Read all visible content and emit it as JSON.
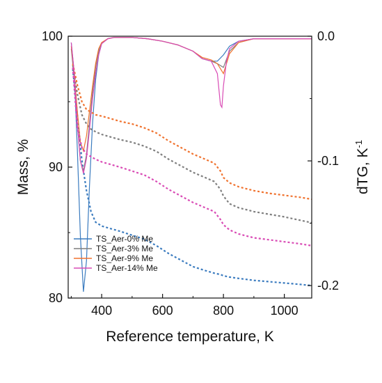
{
  "chart_data": {
    "type": "line",
    "xlabel": "Reference temperature, K",
    "ylabel_left": "Mass, %",
    "ylabel_right": "dTG, K",
    "ylabel_right_sup": "-1",
    "xlim": [
      290,
      1090
    ],
    "ylim_left": [
      80,
      100
    ],
    "ylim_right": [
      -0.21,
      0.0
    ],
    "x_ticks": [
      400,
      600,
      800,
      1000
    ],
    "y_left_ticks": [
      80,
      90,
      100
    ],
    "y_right_ticks": [
      0.0,
      -0.1,
      -0.2
    ],
    "y_right_tick_labels": [
      "0.0",
      "-0.1",
      "-0.2"
    ],
    "legend": {
      "placement": "bottom-left",
      "entries": [
        "TS_Aer-0% Me",
        "TS_Aer-3% Me",
        "TS_Aer-9% Me",
        "TS_Aer-14% Me"
      ]
    },
    "series": [
      {
        "name": "TS_Aer-0% Me",
        "color": "#3a7bbf",
        "mass": {
          "x": [
            305,
            320,
            335,
            350,
            365,
            380,
            400,
            430,
            460,
            500,
            540,
            580,
            620,
            660,
            700,
            740,
            770,
            790,
            800,
            820,
            850,
            900,
            950,
            1000,
            1050,
            1090
          ],
          "y": [
            97.5,
            94.0,
            90.5,
            88.2,
            86.6,
            85.8,
            85.5,
            85.3,
            85.1,
            84.8,
            84.5,
            84.0,
            83.4,
            82.9,
            82.4,
            82.1,
            81.9,
            81.8,
            81.7,
            81.6,
            81.5,
            81.35,
            81.25,
            81.15,
            81.05,
            80.95
          ]
        },
        "dtg": {
          "x": [
            300,
            310,
            320,
            330,
            340,
            350,
            360,
            370,
            380,
            390,
            400,
            420,
            440,
            470,
            500,
            550,
            600,
            650,
            700,
            730,
            760,
            780,
            800,
            820,
            850,
            900,
            950,
            1000,
            1050,
            1090
          ],
          "y": [
            -0.005,
            -0.03,
            -0.09,
            -0.16,
            -0.205,
            -0.18,
            -0.12,
            -0.07,
            -0.035,
            -0.015,
            -0.006,
            -0.002,
            -0.001,
            -0.001,
            -0.001,
            -0.002,
            -0.004,
            -0.007,
            -0.012,
            -0.018,
            -0.02,
            -0.02,
            -0.015,
            -0.008,
            -0.004,
            -0.002,
            -0.002,
            -0.002,
            -0.002,
            -0.002
          ]
        }
      },
      {
        "name": "TS_Aer-3% Me",
        "color": "#7f7f7f",
        "mass": {
          "x": [
            305,
            320,
            335,
            350,
            365,
            380,
            400,
            430,
            460,
            500,
            540,
            580,
            620,
            660,
            700,
            740,
            770,
            790,
            800,
            820,
            850,
            900,
            950,
            1000,
            1050,
            1090
          ],
          "y": [
            97.8,
            95.6,
            94.0,
            93.3,
            92.9,
            92.7,
            92.5,
            92.3,
            92.1,
            91.9,
            91.6,
            91.2,
            90.6,
            90.1,
            89.6,
            89.2,
            88.9,
            88.3,
            87.8,
            87.2,
            86.9,
            86.6,
            86.4,
            86.2,
            85.95,
            85.75
          ]
        },
        "dtg": {
          "x": [
            300,
            310,
            320,
            330,
            340,
            350,
            360,
            370,
            380,
            390,
            400,
            420,
            440,
            470,
            500,
            550,
            600,
            650,
            700,
            730,
            760,
            780,
            800,
            820,
            850,
            900,
            950,
            1000,
            1050,
            1090
          ],
          "y": [
            -0.01,
            -0.035,
            -0.07,
            -0.1,
            -0.108,
            -0.095,
            -0.07,
            -0.045,
            -0.025,
            -0.012,
            -0.006,
            -0.002,
            -0.001,
            -0.001,
            -0.001,
            -0.002,
            -0.004,
            -0.007,
            -0.012,
            -0.018,
            -0.02,
            -0.022,
            -0.025,
            -0.012,
            -0.005,
            -0.002,
            -0.002,
            -0.002,
            -0.002,
            -0.002
          ]
        }
      },
      {
        "name": "TS_Aer-9% Me",
        "color": "#f0722e",
        "mass": {
          "x": [
            305,
            320,
            335,
            350,
            365,
            380,
            400,
            430,
            460,
            500,
            540,
            580,
            620,
            660,
            700,
            740,
            770,
            790,
            800,
            820,
            850,
            900,
            950,
            1000,
            1050,
            1090
          ],
          "y": [
            97.9,
            96.3,
            95.0,
            94.4,
            94.2,
            94.0,
            93.9,
            93.7,
            93.5,
            93.3,
            93.0,
            92.6,
            92.0,
            91.5,
            91.0,
            90.6,
            90.3,
            89.7,
            89.2,
            88.8,
            88.5,
            88.2,
            88.0,
            87.85,
            87.7,
            87.55
          ]
        },
        "dtg": {
          "x": [
            300,
            310,
            320,
            330,
            340,
            350,
            360,
            370,
            380,
            390,
            400,
            420,
            440,
            470,
            500,
            550,
            600,
            650,
            700,
            730,
            760,
            780,
            800,
            820,
            850,
            900,
            950,
            1000,
            1050,
            1090
          ],
          "y": [
            -0.008,
            -0.03,
            -0.06,
            -0.085,
            -0.092,
            -0.08,
            -0.06,
            -0.04,
            -0.022,
            -0.01,
            -0.005,
            -0.002,
            -0.001,
            -0.001,
            -0.001,
            -0.002,
            -0.004,
            -0.007,
            -0.012,
            -0.017,
            -0.019,
            -0.022,
            -0.03,
            -0.014,
            -0.005,
            -0.002,
            -0.002,
            -0.002,
            -0.002,
            -0.002
          ]
        }
      },
      {
        "name": "TS_Aer-14% Me",
        "color": "#d94bb5",
        "mass": {
          "x": [
            305,
            320,
            335,
            350,
            365,
            380,
            400,
            430,
            460,
            500,
            540,
            580,
            620,
            660,
            700,
            740,
            770,
            790,
            800,
            820,
            850,
            900,
            950,
            1000,
            1050,
            1090
          ],
          "y": [
            97.6,
            93.0,
            91.5,
            91.0,
            90.8,
            90.6,
            90.4,
            90.2,
            90.0,
            89.7,
            89.4,
            88.9,
            88.3,
            87.8,
            87.3,
            86.9,
            86.6,
            86.0,
            85.6,
            85.2,
            84.9,
            84.6,
            84.45,
            84.3,
            84.15,
            84.0
          ]
        },
        "dtg": {
          "x": [
            300,
            310,
            320,
            330,
            340,
            350,
            360,
            370,
            380,
            390,
            400,
            420,
            440,
            470,
            500,
            550,
            600,
            650,
            700,
            730,
            760,
            780,
            790,
            795,
            800,
            810,
            820,
            850,
            900,
            950,
            1000,
            1050,
            1090
          ],
          "y": [
            -0.005,
            -0.03,
            -0.07,
            -0.1,
            -0.11,
            -0.098,
            -0.075,
            -0.05,
            -0.03,
            -0.015,
            -0.006,
            -0.002,
            -0.001,
            -0.001,
            -0.001,
            -0.002,
            -0.004,
            -0.007,
            -0.012,
            -0.018,
            -0.02,
            -0.03,
            -0.055,
            -0.057,
            -0.04,
            -0.02,
            -0.01,
            -0.004,
            -0.002,
            -0.002,
            -0.002,
            -0.002,
            -0.002
          ]
        }
      }
    ]
  }
}
